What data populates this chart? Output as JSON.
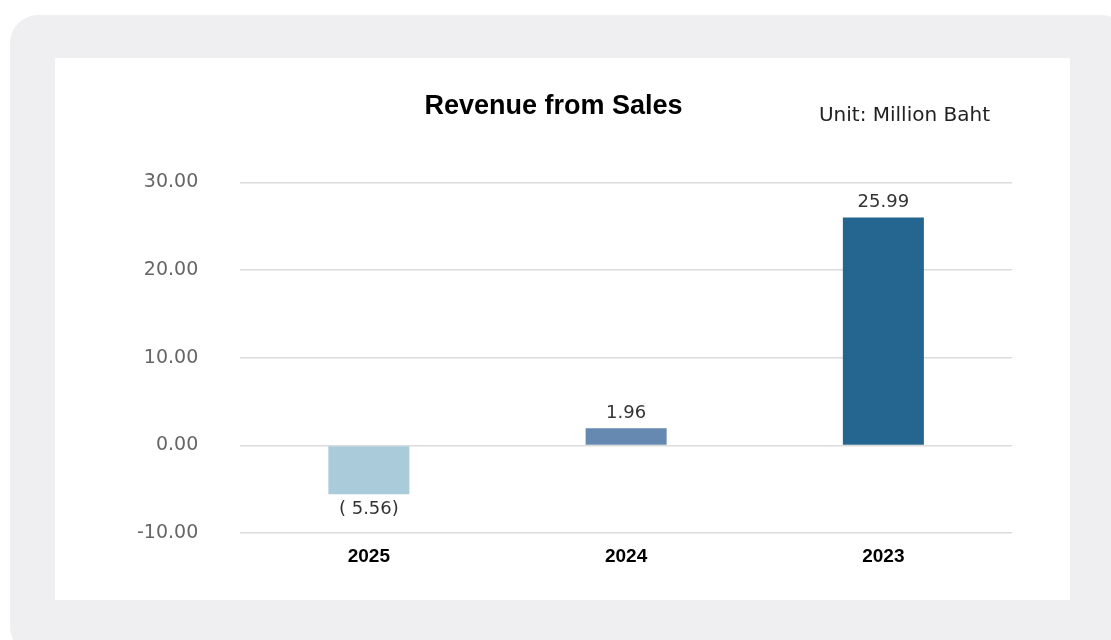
{
  "chart_data": {
    "type": "bar",
    "title": "Revenue from Sales",
    "annotations": [
      "Unit: Million Baht"
    ],
    "categories": [
      "2025",
      "2024",
      "2023"
    ],
    "values": [
      -5.56,
      1.96,
      25.99
    ],
    "colors": [
      "#aacbda",
      "#6689b1",
      "#24668f"
    ],
    "value_labels": [
      "( 5.56)",
      "1.96",
      "25.99"
    ],
    "ylim": [
      -10,
      30
    ],
    "yticks": [
      {
        "value": -10,
        "label": "-10.00"
      },
      {
        "value": 0,
        "label": "0.00"
      },
      {
        "value": 10,
        "label": "10.00"
      },
      {
        "value": 20,
        "label": "20.00"
      },
      {
        "value": 30,
        "label": "30.00"
      }
    ],
    "grid": "y",
    "legend": false
  }
}
